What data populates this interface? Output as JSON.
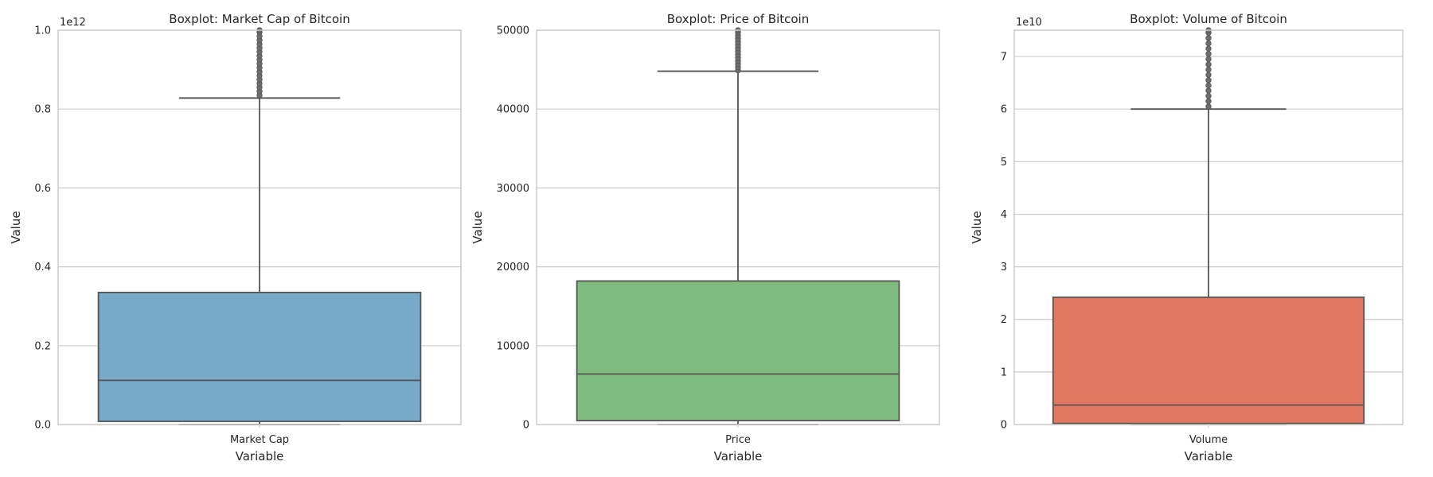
{
  "chart_data": [
    {
      "type": "box",
      "title": "Boxplot: Market Cap of Bitcoin",
      "xlabel": "Variable",
      "ylabel": "Value",
      "category": "Market Cap",
      "offset_text": "1e12",
      "yscale_factor": 1000000000000.0,
      "ylim": [
        0,
        1.0
      ],
      "yticks": [
        0.0,
        0.2,
        0.4,
        0.6,
        0.8,
        1.0
      ],
      "ytick_labels": [
        "0.0",
        "0.2",
        "0.4",
        "0.6",
        "0.8",
        "1.0"
      ],
      "color": "#77a9c9",
      "stats": {
        "whisker_low": 0.0,
        "q1": 0.008,
        "median": 0.112,
        "q3": 0.335,
        "whisker_high": 0.828
      },
      "outliers": [
        0.835,
        0.845,
        0.855,
        0.865,
        0.875,
        0.885,
        0.895,
        0.905,
        0.915,
        0.925,
        0.935,
        0.945,
        0.955,
        0.965,
        0.975,
        0.985,
        0.995,
        1.0
      ],
      "grid": true
    },
    {
      "type": "box",
      "title": "Boxplot: Price of Bitcoin",
      "xlabel": "Variable",
      "ylabel": "Value",
      "category": "Price",
      "offset_text": "",
      "yscale_factor": 1,
      "ylim": [
        0,
        50000
      ],
      "yticks": [
        0,
        10000,
        20000,
        30000,
        40000,
        50000
      ],
      "ytick_labels": [
        "0",
        "10000",
        "20000",
        "30000",
        "40000",
        "50000"
      ],
      "color": "#7dbb7e",
      "stats": {
        "whisker_low": 0,
        "q1": 500,
        "median": 6400,
        "q3": 18200,
        "whisker_high": 44800
      },
      "outliers": [
        44900,
        45300,
        45700,
        46100,
        46500,
        46900,
        47300,
        47700,
        48100,
        48500,
        48900,
        49300,
        49700,
        50000
      ],
      "grid": true
    },
    {
      "type": "box",
      "title": "Boxplot: Volume of Bitcoin",
      "xlabel": "Variable",
      "ylabel": "Value",
      "category": "Volume",
      "offset_text": "1e10",
      "yscale_factor": 10000000000.0,
      "ylim": [
        0,
        7.5
      ],
      "yticks": [
        0,
        1,
        2,
        3,
        4,
        5,
        6,
        7
      ],
      "ytick_labels": [
        "0",
        "1",
        "2",
        "3",
        "4",
        "5",
        "6",
        "7"
      ],
      "color": "#e4775f",
      "stats": {
        "whisker_low": 0.0,
        "q1": 0.02,
        "median": 0.37,
        "q3": 2.42,
        "whisker_high": 6.0
      },
      "outliers": [
        6.05,
        6.15,
        6.25,
        6.35,
        6.45,
        6.55,
        6.65,
        6.75,
        6.85,
        6.95,
        7.05,
        7.15,
        7.25,
        7.35,
        7.45,
        7.5
      ],
      "grid": true
    }
  ]
}
